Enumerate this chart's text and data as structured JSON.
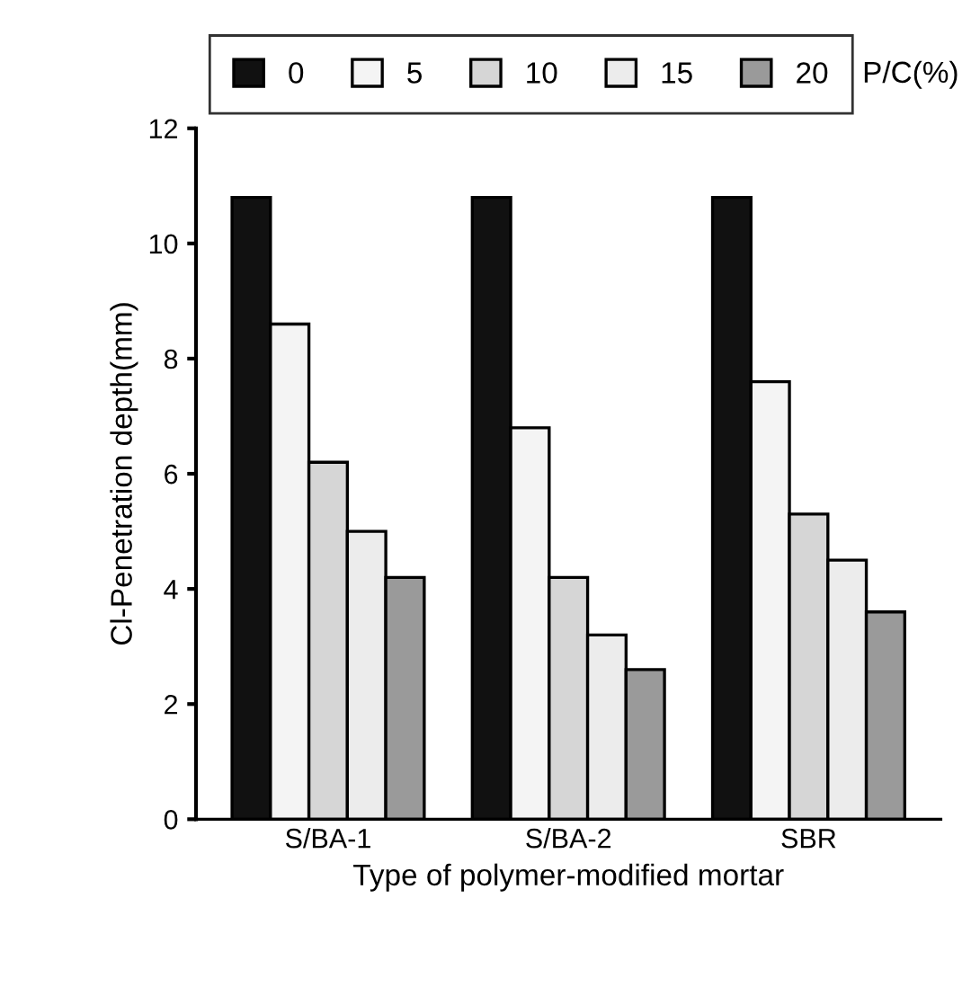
{
  "chart_data": {
    "type": "bar",
    "xlabel": "Type of polymer-modified mortar",
    "ylabel": "Cl-Penetration depth(mm)",
    "legend_title": "P/C(%)",
    "categories": [
      "S/BA-1",
      "S/BA-2",
      "SBR"
    ],
    "series": [
      {
        "name": "0",
        "color": "#111111",
        "values": [
          10.8,
          10.8,
          10.8
        ]
      },
      {
        "name": "5",
        "color": "#f4f4f4",
        "values": [
          8.6,
          6.8,
          7.6
        ]
      },
      {
        "name": "10",
        "color": "#d6d6d6",
        "values": [
          6.2,
          4.2,
          5.3
        ]
      },
      {
        "name": "15",
        "color": "#ececec",
        "values": [
          5.0,
          3.2,
          4.5
        ]
      },
      {
        "name": "20",
        "color": "#9a9a9a",
        "values": [
          4.2,
          2.6,
          3.6
        ]
      }
    ],
    "ylim": [
      0,
      12
    ],
    "yticks": [
      0,
      2,
      4,
      6,
      8,
      10,
      12
    ],
    "grid": false,
    "legend": "top"
  }
}
